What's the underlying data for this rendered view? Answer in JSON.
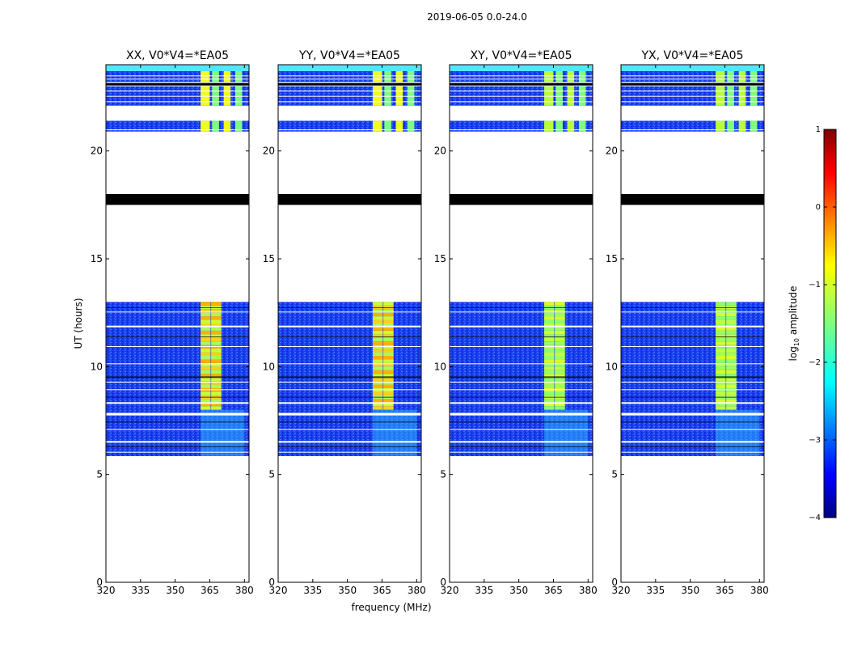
{
  "chart_data": {
    "type": "heatmap",
    "title": "2019-06-05 0.0-24.0",
    "xlabel": "frequency (MHz)",
    "ylabel": "UT (hours)",
    "xlim": [
      320,
      382
    ],
    "ylim": [
      0,
      24
    ],
    "xticks": [
      320,
      335,
      350,
      365,
      380
    ],
    "yticks": [
      0,
      5,
      10,
      15,
      20
    ],
    "panels": [
      {
        "title": "XX, V0*V4=*EA05"
      },
      {
        "title": "YY, V0*V4=*EA05"
      },
      {
        "title": "XY, V0*V4=*EA05"
      },
      {
        "title": "YX, V0*V4=*EA05"
      }
    ],
    "data_ranges_ut": [
      [
        5.85,
        13.0
      ],
      [
        20.9,
        21.4
      ],
      [
        22.1,
        23.0
      ],
      [
        23.2,
        24.0
      ]
    ],
    "flagged_block_ut": [
      17.5,
      18.0
    ],
    "strong_rfi_band_mhz": [
      361,
      370
    ],
    "strong_rfi_segments_mhz": [
      [
        361,
        365
      ],
      [
        366,
        369
      ],
      [
        371,
        374
      ],
      [
        376,
        379
      ]
    ],
    "colorbar": {
      "label_prefix": "log",
      "label_sub": "10",
      "label_suffix": " amplitude",
      "range": [
        -4,
        1
      ],
      "ticks": [
        1,
        0,
        -1,
        -2,
        -3,
        -4
      ]
    }
  }
}
